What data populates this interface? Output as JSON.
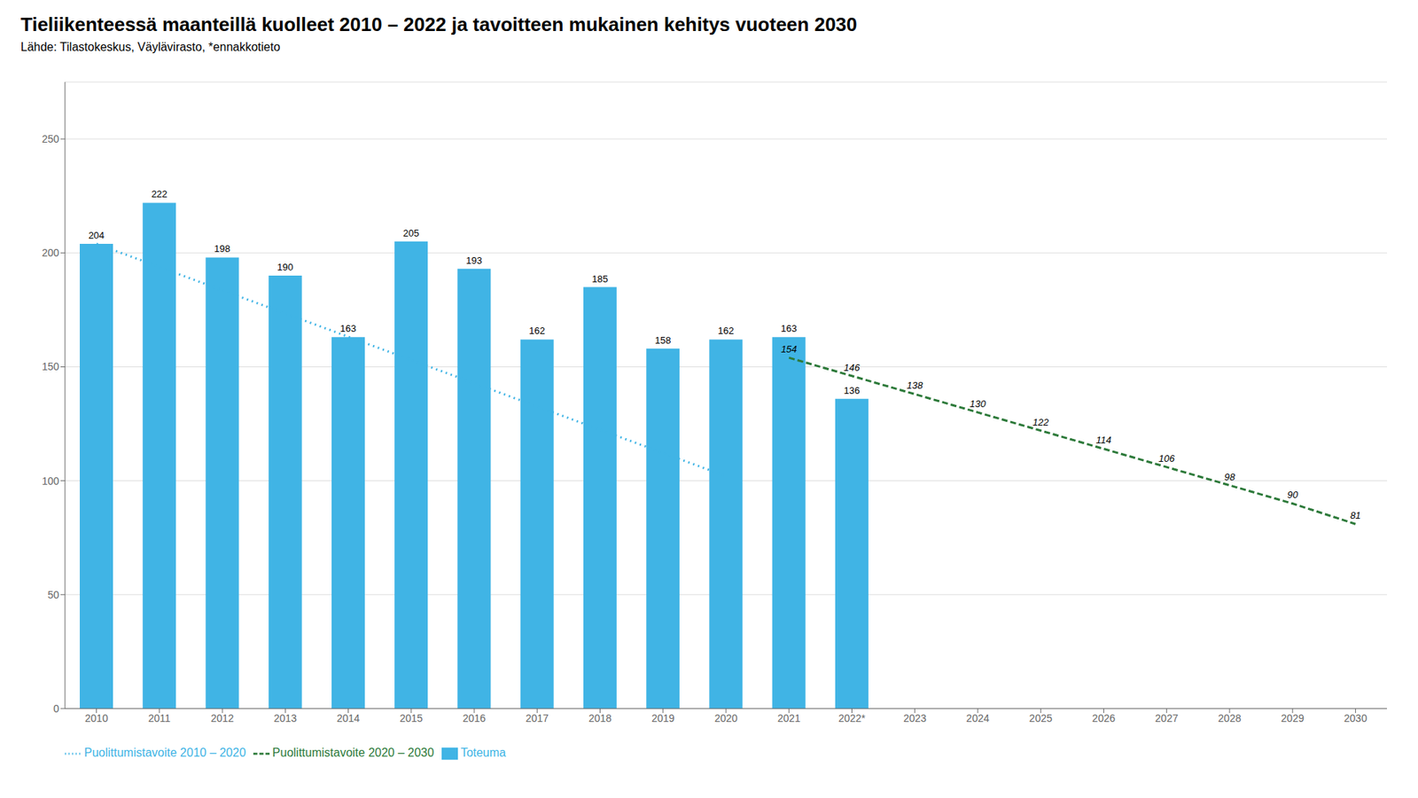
{
  "chart_data": {
    "type": "bar",
    "title": "Tieliikenteessä maanteillä kuolleet 2010 – 2022 ja tavoitteen mukainen kehitys vuoteen 2030",
    "subtitle": "Lähde: Tilastokeskus, Väylävirasto, *ennakkotieto",
    "categories": [
      "2010",
      "2011",
      "2012",
      "2013",
      "2014",
      "2015",
      "2016",
      "2017",
      "2018",
      "2019",
      "2020",
      "2021",
      "2022*",
      "2023",
      "2024",
      "2025",
      "2026",
      "2027",
      "2028",
      "2029",
      "2030"
    ],
    "series": [
      {
        "name": "Toteuma",
        "type": "bar",
        "color": "#40B4E5",
        "data_labels": true,
        "values": [
          204,
          222,
          198,
          190,
          163,
          205,
          193,
          162,
          185,
          158,
          162,
          163,
          136,
          null,
          null,
          null,
          null,
          null,
          null,
          null,
          null
        ]
      },
      {
        "name": "Puolittumistavoite 2010 – 2020",
        "type": "line",
        "line_style": "dotted",
        "color": "#40B4E5",
        "values": [
          204,
          193.8,
          183.6,
          173.4,
          163.2,
          153.0,
          142.8,
          132.6,
          122.4,
          112.2,
          102,
          null,
          null,
          null,
          null,
          null,
          null,
          null,
          null,
          null,
          null
        ]
      },
      {
        "name": "Puolittumistavoite 2020 – 2030",
        "type": "line",
        "line_style": "dashed",
        "color": "#2D7A3A",
        "data_labels": true,
        "values": [
          null,
          null,
          null,
          null,
          null,
          null,
          null,
          null,
          null,
          null,
          null,
          154,
          146,
          138,
          130,
          122,
          114,
          106,
          98,
          90,
          81
        ]
      }
    ],
    "ylim": [
      0,
      275
    ],
    "yticks": [
      0,
      50,
      100,
      150,
      200,
      250
    ],
    "grid": true,
    "legend": "lower left"
  }
}
